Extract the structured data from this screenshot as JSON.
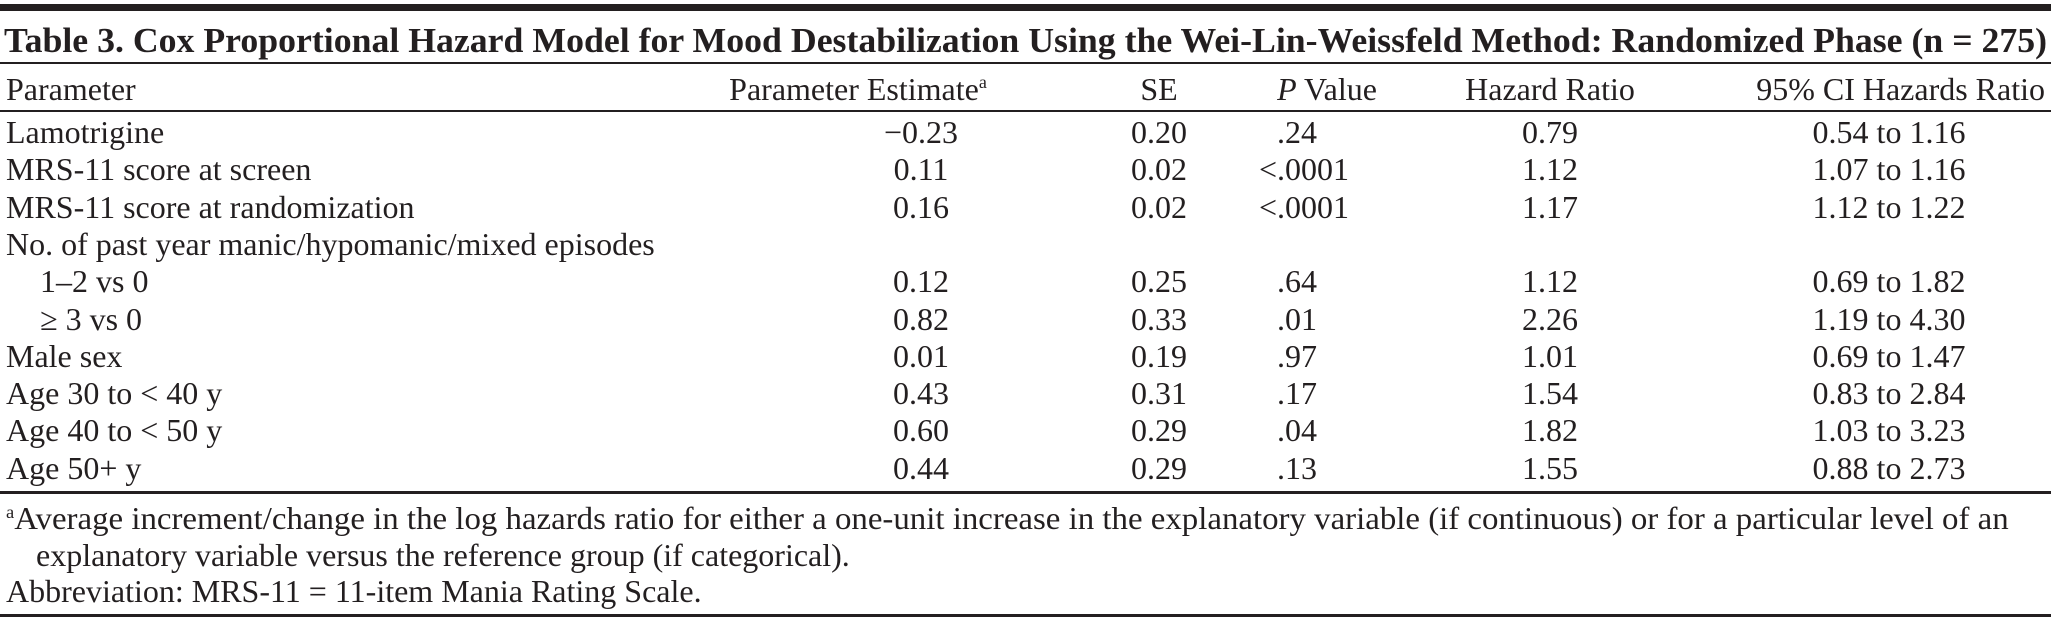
{
  "title": "Table 3. Cox Proportional Hazard Model for Mood Destabilization Using the Wei-Lin-Weissfeld Method: Randomized Phase (n = 275)",
  "headers": {
    "parameter": "Parameter",
    "estimate": "Parameter Estimate",
    "estimate_footnote_mark": "a",
    "se": "SE",
    "p_italic": "P",
    "p_rest": " Value",
    "hazard_ratio": "Hazard Ratio",
    "ci": "95% CI Hazards Ratio"
  },
  "rows": [
    {
      "parameter": "Lamotrigine",
      "estimate": "−0.23",
      "se": "0.20",
      "p": ".24",
      "hr": "0.79",
      "ci": "0.54 to 1.16",
      "indent": false
    },
    {
      "parameter": "MRS-11 score at screen",
      "estimate": "0.11",
      "se": "0.02",
      "p": "< .0001",
      "hr": "1.12",
      "ci": "1.07 to 1.16",
      "indent": false
    },
    {
      "parameter": "MRS-11 score at randomization",
      "estimate": "0.16",
      "se": "0.02",
      "p": "< .0001",
      "hr": "1.17",
      "ci": "1.12 to 1.22",
      "indent": false
    },
    {
      "parameter": "No. of past year manic/hypomanic/mixed episodes",
      "estimate": "",
      "se": "",
      "p": "",
      "hr": "",
      "ci": "",
      "indent": false
    },
    {
      "parameter": "1–2 vs 0",
      "estimate": "0.12",
      "se": "0.25",
      "p": ".64",
      "hr": "1.12",
      "ci": "0.69 to 1.82",
      "indent": true
    },
    {
      "parameter": "≥ 3 vs 0",
      "estimate": "0.82",
      "se": "0.33",
      "p": ".01",
      "hr": "2.26",
      "ci": "1.19 to 4.30",
      "indent": true
    },
    {
      "parameter": "Male sex",
      "estimate": "0.01",
      "se": "0.19",
      "p": ".97",
      "hr": "1.01",
      "ci": "0.69 to 1.47",
      "indent": false
    },
    {
      "parameter": "Age 30 to < 40 y",
      "estimate": "0.43",
      "se": "0.31",
      "p": ".17",
      "hr": "1.54",
      "ci": "0.83 to 2.84",
      "indent": false
    },
    {
      "parameter": "Age 40 to < 50 y",
      "estimate": "0.60",
      "se": "0.29",
      "p": ".04",
      "hr": "1.82",
      "ci": "1.03 to 3.23",
      "indent": false
    },
    {
      "parameter": "Age 50+ y",
      "estimate": "0.44",
      "se": "0.29",
      "p": ".13",
      "hr": "1.55",
      "ci": "0.88 to 2.73",
      "indent": false
    }
  ],
  "footnotes": {
    "a_mark": "a",
    "a_line1": "Average increment/change in the log hazards ratio for either a one-unit increase in the explanatory variable (if continuous) or for a particular level of an",
    "a_line2": "explanatory variable versus the reference group (if categorical).",
    "abbreviation": "Abbreviation: MRS-11 = 11-item Mania Rating Scale."
  }
}
